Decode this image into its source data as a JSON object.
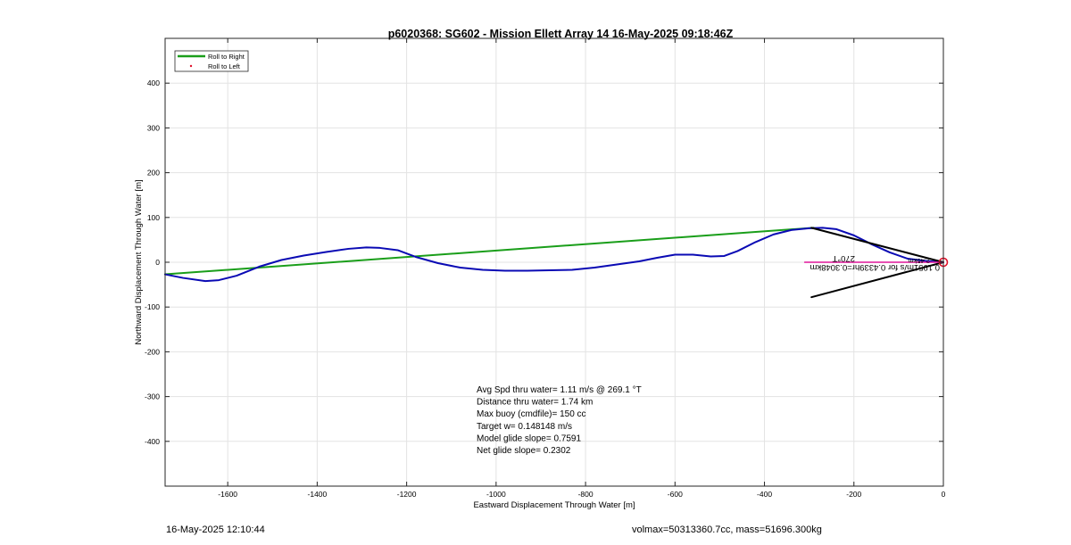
{
  "footer": {
    "timestamp": "16-May-2025 12:10:44",
    "volmass": "volmax=50313360.7cc, mass=51696.300kg"
  },
  "colors": {
    "green": "#1a9e1a",
    "blue": "#0a0ab4",
    "black": "#000000",
    "magenta": "#e0169b",
    "red_marker": "#e0102a",
    "grid": "#e3e3e3"
  },
  "chart_data": {
    "type": "line",
    "title": "p6020368: SG602 - Mission Ellett Array 14 16-May-2025 09:18:46Z",
    "xlabel": "Eastward Displacement Through Water [m]",
    "ylabel": "Northward Displacement Through Water [m]",
    "xlim": [
      -1740,
      0
    ],
    "ylim": [
      -500,
      500
    ],
    "xticks": [
      -1600,
      -1400,
      -1200,
      -1000,
      -800,
      -600,
      -400,
      -200,
      0
    ],
    "yticks": [
      -400,
      -300,
      -200,
      -100,
      0,
      100,
      200,
      300,
      400
    ],
    "grid": true,
    "legend": {
      "placement": "top-left",
      "entries": [
        {
          "label": "Roll to Right",
          "color": "#1a9e1a",
          "style": "line"
        },
        {
          "label": "Roll to Left",
          "color": "#e0102a",
          "style": "dot"
        }
      ]
    },
    "series": [
      {
        "name": "Roll to Right",
        "color": "#1a9e1a",
        "x": [
          -1740,
          -290
        ],
        "y": [
          -27,
          77
        ]
      },
      {
        "color": "#0a0ab4",
        "x": [
          -1740,
          -1700,
          -1650,
          -1620,
          -1580,
          -1530,
          -1480,
          -1430,
          -1380,
          -1330,
          -1290,
          -1260,
          -1220,
          -1180,
          -1130,
          -1080,
          -1030,
          -980,
          -930,
          -880,
          -830,
          -780,
          -730,
          -680,
          -640,
          -600,
          -560,
          -520,
          -490,
          -460,
          -420,
          -380,
          -340,
          -300,
          -270,
          -240,
          -200,
          -160,
          -120,
          -80,
          -40,
          0
        ],
        "y": [
          -27,
          -35,
          -42,
          -40,
          -30,
          -10,
          5,
          15,
          23,
          30,
          33,
          32,
          27,
          12,
          -2,
          -12,
          -17,
          -19,
          -19,
          -18,
          -17,
          -12,
          -5,
          2,
          10,
          17,
          17,
          13,
          14,
          25,
          45,
          62,
          72,
          76,
          77,
          74,
          60,
          40,
          22,
          8,
          3,
          0
        ]
      },
      {
        "color": "#000000",
        "x": [
          -295,
          0,
          -295
        ],
        "y": [
          77,
          0,
          -78
        ]
      },
      {
        "color": "#e0169b",
        "x": [
          -310,
          0
        ],
        "y": [
          0,
          0
        ]
      }
    ],
    "end_marker": {
      "x": 0,
      "y": 0,
      "color": "#e0102a"
    },
    "annotations": {
      "stats": [
        "Avg Spd thru water=  1.11 m/s @ 269.1 °T",
        "Distance thru water=  1.74 km",
        "Max buoy (cmdfile)= 150 cc",
        "Target w= 0.148148 m/s",
        "Model glide slope= 0.7591",
        "Net glide slope= 0.2302"
      ],
      "current_label": "0.1951m/s for 0.4339hr=0.3048km",
      "heading_label": "270°T",
      "small_label": "2.45km"
    }
  }
}
